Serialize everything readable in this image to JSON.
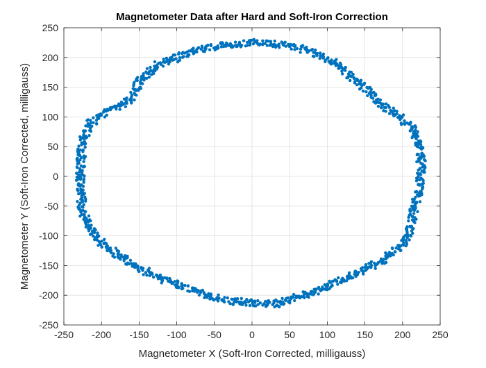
{
  "chart_data": {
    "type": "scatter",
    "title": "Magnetometer Data after Hard and Soft-Iron Correction",
    "xlabel": "Magnetometer X (Soft-Iron Corrected, milligauss)",
    "ylabel": "Magnetometer Y (Soft-Iron Corrected, milligauss)",
    "xlim": [
      -250,
      250
    ],
    "ylim": [
      -250,
      250
    ],
    "xticks": [
      -250,
      -200,
      -150,
      -100,
      -50,
      0,
      50,
      100,
      150,
      200,
      250
    ],
    "yticks": [
      -250,
      -200,
      -150,
      -100,
      -50,
      0,
      50,
      100,
      150,
      200,
      250
    ],
    "grid": true,
    "marker_color": "#0072BD",
    "series": [
      {
        "outline": [
          {
            "x": 0,
            "y": 225
          },
          {
            "x": 40,
            "y": 222
          },
          {
            "x": 80,
            "y": 210
          },
          {
            "x": 110,
            "y": 190
          },
          {
            "x": 140,
            "y": 160
          },
          {
            "x": 170,
            "y": 125
          },
          {
            "x": 195,
            "y": 100
          },
          {
            "x": 215,
            "y": 80
          },
          {
            "x": 222,
            "y": 50
          },
          {
            "x": 225,
            "y": 20
          },
          {
            "x": 222,
            "y": -20
          },
          {
            "x": 215,
            "y": -60
          },
          {
            "x": 210,
            "y": -90
          },
          {
            "x": 200,
            "y": -115
          },
          {
            "x": 175,
            "y": -140
          },
          {
            "x": 145,
            "y": -160
          },
          {
            "x": 110,
            "y": -180
          },
          {
            "x": 80,
            "y": -195
          },
          {
            "x": 55,
            "y": -205
          },
          {
            "x": 30,
            "y": -215
          },
          {
            "x": 0,
            "y": -212
          },
          {
            "x": -30,
            "y": -210
          },
          {
            "x": -60,
            "y": -200
          },
          {
            "x": -100,
            "y": -182
          },
          {
            "x": -140,
            "y": -160
          },
          {
            "x": -180,
            "y": -132
          },
          {
            "x": -210,
            "y": -100
          },
          {
            "x": -225,
            "y": -60
          },
          {
            "x": -228,
            "y": -20
          },
          {
            "x": -228,
            "y": 20
          },
          {
            "x": -225,
            "y": 60
          },
          {
            "x": -215,
            "y": 90
          },
          {
            "x": -190,
            "y": 110
          },
          {
            "x": -165,
            "y": 125
          },
          {
            "x": -155,
            "y": 140
          },
          {
            "x": -150,
            "y": 160
          },
          {
            "x": -130,
            "y": 185
          },
          {
            "x": -90,
            "y": 205
          },
          {
            "x": -45,
            "y": 220
          },
          {
            "x": 0,
            "y": 225
          }
        ]
      }
    ]
  }
}
